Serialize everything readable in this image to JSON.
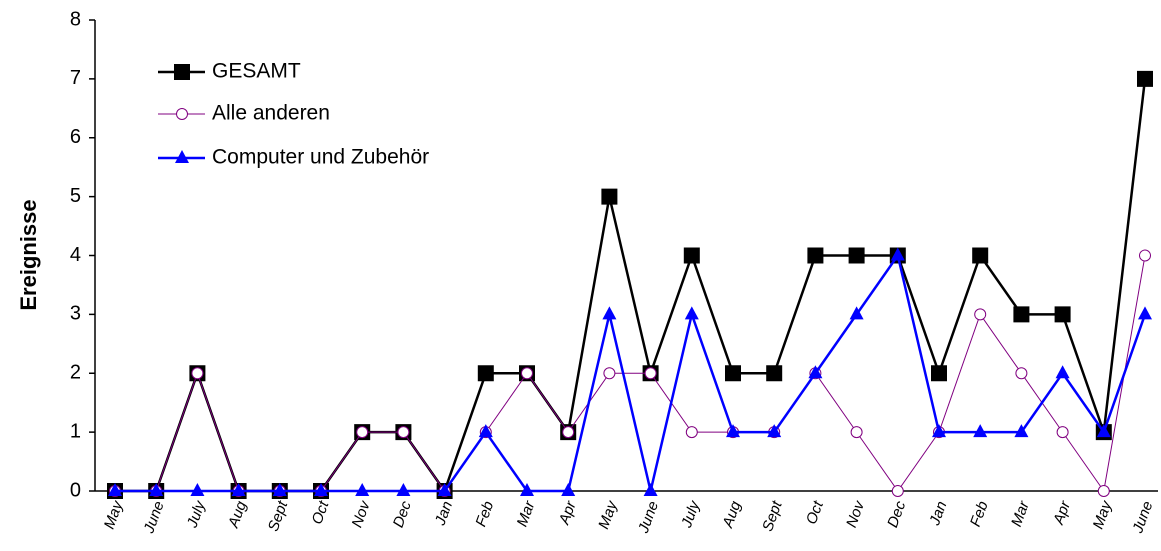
{
  "chart_data": {
    "type": "line",
    "y_label": "Ereignisse",
    "categories": [
      "May",
      "June",
      "July",
      "Aug",
      "Sept",
      "Oct",
      "Nov",
      "Dec",
      "Jan",
      "Feb",
      "Mar",
      "Apr",
      "May",
      "June",
      "July",
      "Aug",
      "Sept",
      "Oct",
      "Nov",
      "Dec",
      "Jan",
      "Feb",
      "Mar",
      "Apr",
      "May",
      "June"
    ],
    "series": [
      {
        "name": "GESAMT",
        "color": "#000000",
        "marker": "square",
        "values": [
          0,
          0,
          2,
          0,
          0,
          0,
          1,
          1,
          0,
          2,
          2,
          1,
          5,
          2,
          4,
          2,
          2,
          4,
          4,
          4,
          2,
          4,
          3,
          3,
          1,
          7
        ]
      },
      {
        "name": "Alle anderen",
        "color": "#800080",
        "marker": "circle",
        "values": [
          0,
          0,
          2,
          0,
          0,
          0,
          1,
          1,
          0,
          1,
          2,
          1,
          2,
          2,
          1,
          1,
          1,
          2,
          1,
          0,
          1,
          3,
          2,
          1,
          0,
          4
        ]
      },
      {
        "name": "Computer und Zubehör",
        "color": "#0000ff",
        "marker": "triangle",
        "values": [
          0,
          0,
          0,
          0,
          0,
          0,
          0,
          0,
          0,
          1,
          0,
          0,
          3,
          0,
          3,
          1,
          1,
          2,
          3,
          4,
          1,
          1,
          1,
          2,
          1,
          3
        ]
      }
    ],
    "ylim": [
      0,
      8
    ],
    "yticks": [
      0,
      1,
      2,
      3,
      4,
      5,
      6,
      7,
      8
    ],
    "legend": "upper left"
  }
}
